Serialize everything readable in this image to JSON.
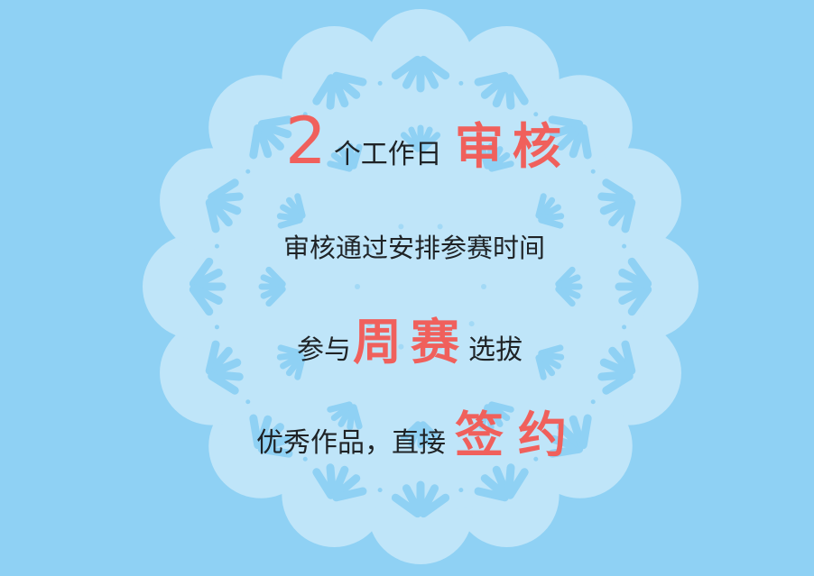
{
  "colors": {
    "background": "#8fd1f4",
    "doily_fill": "#bfe5f9",
    "doily_pattern": "#8fd1f4",
    "accent_text": "#f0605c",
    "body_text": "#1f2326"
  },
  "line1": {
    "number": "2",
    "text": "个工作日",
    "emphasis": "审核"
  },
  "line2": {
    "text": "审核通过安排参赛时间"
  },
  "line3": {
    "prefix": "参与",
    "emphasis": "周赛",
    "suffix": "选拔"
  },
  "line4": {
    "text": "优秀作品，直接",
    "emphasis": "签约"
  }
}
